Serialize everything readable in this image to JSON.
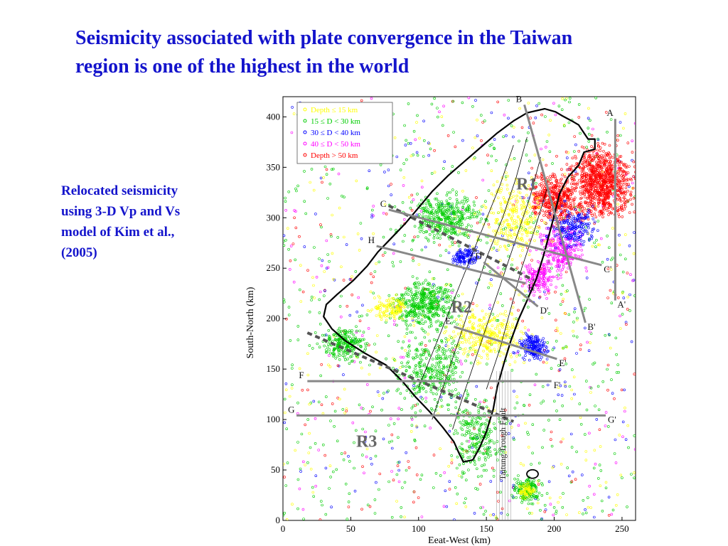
{
  "slide": {
    "title_lines": [
      "Seismicity associated with plate convergence in the Taiwan",
      "region is one of the highest in the world"
    ],
    "caption_lines": [
      "Relocated seismicity",
      "using 3-D Vp and Vs",
      "model of Kim et al.,",
      "(2005)"
    ]
  },
  "map": {
    "x_axis_label": "Eeat-West (km)",
    "y_axis_label": "South-North (km)",
    "x_ticks": [
      "0",
      "50",
      "100",
      "150",
      "200",
      "250"
    ],
    "y_ticks": [
      "0",
      "50",
      "100",
      "150",
      "200",
      "250",
      "300",
      "350",
      "400"
    ],
    "x_range": [
      0,
      260
    ],
    "y_range": [
      0,
      420
    ],
    "legend": [
      {
        "label": "Depth ≤ 15 km",
        "color": "#ffff00"
      },
      {
        "label": "15 ≤ D < 30 km",
        "color": "#00cc00"
      },
      {
        "label": "30 ≤ D < 40 km",
        "color": "#0000ff"
      },
      {
        "label": "40 ≤ D < 50 km",
        "color": "#ff00ff"
      },
      {
        "label": "Depth > 50 km",
        "color": "#ff0000"
      }
    ],
    "regions": [
      {
        "label": "R1",
        "x": 172,
        "y": 328
      },
      {
        "label": "R2",
        "x": 124,
        "y": 206
      },
      {
        "label": "R3",
        "x": 54,
        "y": 73
      }
    ],
    "profiles": [
      {
        "start": "A",
        "end": "A'",
        "x1": 245,
        "y1": 398,
        "x2": 245,
        "y2": 218
      },
      {
        "start": "B",
        "end": "B'",
        "x1": 178,
        "y1": 412,
        "x2": 223,
        "y2": 196
      },
      {
        "start": "C",
        "end": "C'",
        "x1": 78,
        "y1": 308,
        "x2": 235,
        "y2": 253
      },
      {
        "start": "D",
        "end": "D'",
        "x1": 148,
        "y1": 256,
        "x2": 188,
        "y2": 212
      },
      {
        "start": "E",
        "end": "E'",
        "x1": 126,
        "y1": 192,
        "x2": 202,
        "y2": 160
      },
      {
        "start": "F",
        "end": "F'",
        "x1": 18,
        "y1": 138,
        "x2": 198,
        "y2": 138
      },
      {
        "start": "G",
        "end": "G'",
        "x1": 10,
        "y1": 104,
        "x2": 238,
        "y2": 104
      },
      {
        "start": "H",
        "end": "H'",
        "x1": 69,
        "y1": 272,
        "x2": 179,
        "y2": 235
      }
    ],
    "fault_label": "Taitung Trough Fault"
  }
}
